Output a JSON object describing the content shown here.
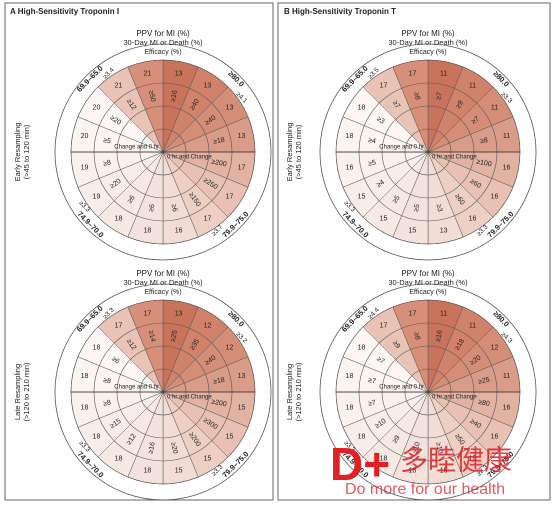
{
  "panels": [
    {
      "title": "A  High-Sensitivity Troponin I",
      "diagrams": [
        {
          "label": [
            "Early Resampling",
            "(>45 to 120 min)"
          ],
          "ring_titles": [
            "PPV for MI (%)",
            "30-Day MI or Death (%)",
            "Efficacy (%)"
          ],
          "quadrants": [
            "≥80.0",
            "79.9–75.0",
            "74.9–70.0",
            "69.9–65.0"
          ],
          "rates": [
            "≥4.1",
            "≥3.7",
            "≥3.3",
            "≥3.4"
          ],
          "outer": [
            "13",
            "13",
            "13",
            "13",
            "17",
            "17",
            "17",
            "16",
            "18",
            "18",
            "19",
            "19",
            "20",
            "20",
            "21",
            "21"
          ],
          "inner": [
            "≥16",
            "≥40",
            "≥40",
            "≥18",
            "≥200",
            "≥250",
            "≥150",
            "≥6",
            "≥6",
            "≥6",
            "≥20",
            "≥8",
            "≥5",
            "≥20",
            "≥12",
            "≥50"
          ],
          "left": "Change and 0 hr",
          "right": "0 hr and Change"
        },
        {
          "label": [
            "Late Resampling",
            "(>120 to 210 min)"
          ],
          "ring_titles": [
            "PPV for MI (%)",
            "30-Day MI or Death (%)",
            "Efficacy (%)"
          ],
          "quadrants": [
            "≥80.0",
            "79.9–75.0",
            "74.9–70.0",
            "69.9–65.0"
          ],
          "rates": [
            "≥3.2",
            "≥3.3",
            "≥3.3",
            "≥3.3"
          ],
          "outer": [
            "13",
            "12",
            "12",
            "13",
            "15",
            "15",
            "15",
            "15",
            "18",
            "18",
            "18",
            "18",
            "18",
            "18",
            "17",
            "17"
          ],
          "inner": [
            "≥25",
            "≥35",
            "≥40",
            "≥18",
            "≥200",
            "≥300",
            "≥200",
            "≥20",
            "≥16",
            "≥12",
            "≥15",
            "≥8",
            "≥8",
            "≥6",
            "≥12",
            "≥14"
          ],
          "left": "Change and 0 hr",
          "right": "0 hr and Change"
        }
      ]
    },
    {
      "title": "B  High-Sensitivity Troponin T",
      "diagrams": [
        {
          "label": [
            "Early Resampling",
            "(>45 to 120 min)"
          ],
          "ring_titles": [
            "PPV for MI (%)",
            "30-Day MI or Death (%)",
            "Efficacy (%)"
          ],
          "quadrants": [
            "≥80.0",
            "79.9–75.0",
            "74.9–70.0",
            "69.9–65.0"
          ],
          "rates": [
            "≥3.3",
            "≥3.3",
            "≥3.3",
            "≥3.5"
          ],
          "outer": [
            "11",
            "11",
            "11",
            "11",
            "16",
            "16",
            "16",
            "13",
            "15",
            "15",
            "15",
            "16",
            "18",
            "18",
            "17",
            "17"
          ],
          "inner": [
            "≥7",
            "≥9",
            "≥7",
            "≥8",
            "≥100",
            "≥60",
            "≥60",
            "≥3",
            "≥5",
            "≥5",
            "≥4",
            "≥5",
            "≥4",
            "≥3",
            "≥7",
            "≥8"
          ],
          "left": "Change and 0 hr",
          "right": "0 hr and Change"
        },
        {
          "label": [
            "Late Resampling",
            "(>120 to 210 min)"
          ],
          "ring_titles": [
            "PPV for MI (%)",
            "30-Day MI or Death (%)",
            "Efficacy (%)"
          ],
          "quadrants": [
            "≥80.0",
            "79.9–75.0",
            "74.9–70.0",
            "69.9–65.0"
          ],
          "rates": [
            "≥4.3",
            "≥3.3",
            "≥3.3",
            "≥4.4"
          ],
          "outer": [
            "11",
            "11",
            "12",
            "11",
            "16",
            "16",
            "15",
            "15",
            "18",
            "18",
            "18",
            "18",
            "18",
            "18",
            "17",
            "17"
          ],
          "inner": [
            "≥16",
            "≥18",
            "≥20",
            "≥25",
            "≥80",
            "≥40",
            "≥50",
            "≥10",
            "≥10",
            "≥9",
            "≥10",
            "≥7",
            "≥7",
            "≥7",
            "≥9",
            "≥8"
          ],
          "left": "Change and 0 hr",
          "right": "0 hr and Change"
        }
      ]
    }
  ],
  "watermark": {
    "logo": "D+",
    "chinese": "多睦健康",
    "slogan": "Do more for our health"
  }
}
